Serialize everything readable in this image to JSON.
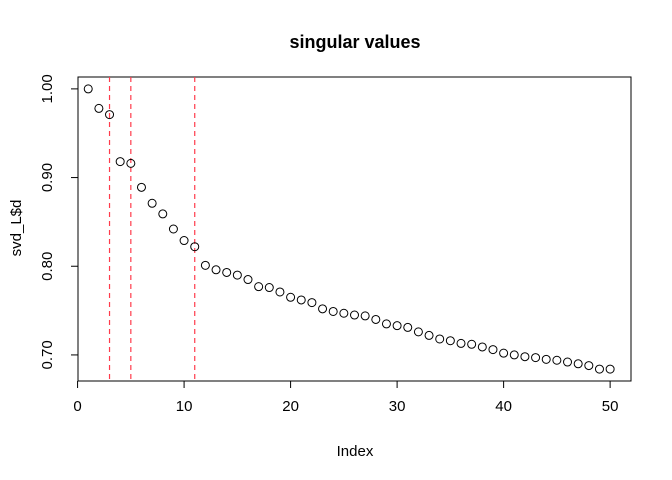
{
  "chart_data": {
    "type": "scatter",
    "title": "singular values",
    "xlabel": "Index",
    "ylabel": "svd_L$d",
    "xlim": [
      0.04,
      51.96
    ],
    "ylim": [
      0.6706,
      1.0134
    ],
    "x_ticks": [
      0,
      10,
      20,
      30,
      40,
      50
    ],
    "x_tick_labels": [
      "0",
      "10",
      "20",
      "30",
      "40",
      "50"
    ],
    "y_ticks": [
      0.7,
      0.8,
      0.9,
      1.0
    ],
    "y_tick_labels": [
      "0.70",
      "0.80",
      "0.90",
      "1.00"
    ],
    "grid": false,
    "marker": "open-circle",
    "x": [
      1,
      2,
      3,
      4,
      5,
      6,
      7,
      8,
      9,
      10,
      11,
      12,
      13,
      14,
      15,
      16,
      17,
      18,
      19,
      20,
      21,
      22,
      23,
      24,
      25,
      26,
      27,
      28,
      29,
      30,
      31,
      32,
      33,
      34,
      35,
      36,
      37,
      38,
      39,
      40,
      41,
      42,
      43,
      44,
      45,
      46,
      47,
      48,
      49,
      50
    ],
    "y": [
      1.0,
      0.978,
      0.971,
      0.918,
      0.916,
      0.889,
      0.871,
      0.859,
      0.842,
      0.829,
      0.822,
      0.801,
      0.796,
      0.793,
      0.79,
      0.785,
      0.777,
      0.776,
      0.771,
      0.765,
      0.762,
      0.759,
      0.752,
      0.749,
      0.747,
      0.745,
      0.744,
      0.74,
      0.735,
      0.733,
      0.731,
      0.726,
      0.722,
      0.718,
      0.716,
      0.713,
      0.712,
      0.709,
      0.706,
      0.702,
      0.7,
      0.698,
      0.697,
      0.695,
      0.694,
      0.692,
      0.69,
      0.688,
      0.684,
      0.684
    ],
    "vlines": [
      {
        "x": 3,
        "color": "#ff3b4b",
        "style": "dashed"
      },
      {
        "x": 5,
        "color": "#ff3b4b",
        "style": "dashed"
      },
      {
        "x": 11,
        "color": "#ff3b4b",
        "style": "dashed"
      }
    ],
    "point_color": "#000000",
    "axis_color": "#000000"
  }
}
